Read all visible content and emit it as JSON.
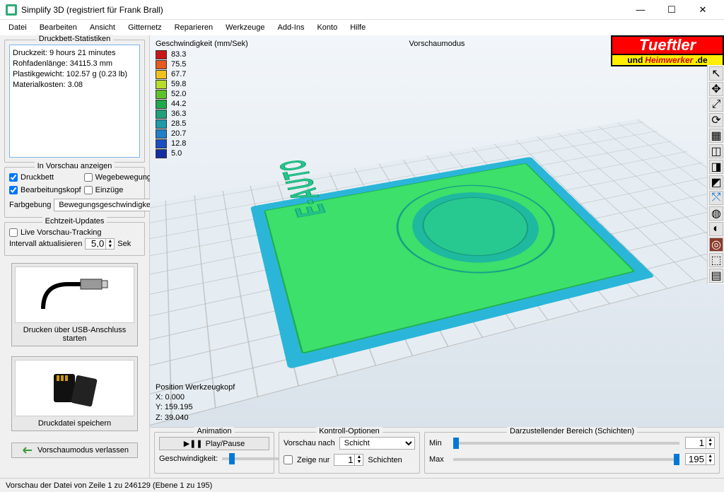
{
  "window": {
    "title": "Simplify 3D (registriert für Frank Brall)",
    "minimize": "—",
    "maximize": "☐",
    "close": "✕"
  },
  "menu": [
    "Datei",
    "Bearbeiten",
    "Ansicht",
    "Gitternetz",
    "Reparieren",
    "Werkzeuge",
    "Add-Ins",
    "Konto",
    "Hilfe"
  ],
  "logo": {
    "line1": "Tueftler",
    "line2_a": "und",
    "line2_b": "Heimwerker",
    "line2_c": ".de",
    "bg": "#ff0000",
    "text": "#ffffff",
    "line2_bg": "#ffee00",
    "line2_text": "#d60000"
  },
  "sidebar": {
    "stats_title": "Druckbett-Statistiken",
    "stats_lines": {
      "l1": "Druckzeit: 9 hours 21 minutes",
      "l2": "Rohfadenlänge: 34115.3 mm",
      "l3": "Plastikgewicht: 102.57 g (0.23 lb)",
      "l4": "Materialkosten: 3.08"
    },
    "preview_title": "In Vorschau anzeigen",
    "cb_druckbett": "Druckbett",
    "cb_wege": "Wegebewegungen",
    "cb_kopf": "Bearbeitungskopf",
    "cb_einzuege": "Einzüge",
    "farbgebung_label": "Farbgebung",
    "farbgebung_value": "Bewegungsgeschwindigkeit",
    "realtime_title": "Echtzeit-Updates",
    "cb_tracking": "Live Vorschau-Tracking",
    "interval_label": "Intervall aktualisieren",
    "interval_value": "5,0",
    "interval_unit": "Sek",
    "usb_btn": "Drucken über USB-Anschluss starten",
    "save_btn": "Druckdatei speichern",
    "exit_btn": "Vorschaumodus verlassen"
  },
  "viewport": {
    "speed_title": "Geschwindigkeit (mm/Sek)",
    "mode": "Vorschaumodus",
    "legend": [
      {
        "v": "83.3",
        "c": "#c8151a"
      },
      {
        "v": "75.5",
        "c": "#e55a1f"
      },
      {
        "v": "67.7",
        "c": "#efc21e"
      },
      {
        "v": "59.8",
        "c": "#b7dc2a"
      },
      {
        "v": "52.0",
        "c": "#5ec22b"
      },
      {
        "v": "44.2",
        "c": "#22a84c"
      },
      {
        "v": "36.3",
        "c": "#1fa07a"
      },
      {
        "v": "28.5",
        "c": "#1f9aa8"
      },
      {
        "v": "20.7",
        "c": "#1f7fc8"
      },
      {
        "v": "12.8",
        "c": "#1b4cc0"
      },
      {
        "v": "5.0",
        "c": "#152da0"
      }
    ],
    "pos_title": "Position Werkzeugkopf",
    "pos_x": "X: 0.000",
    "pos_y": "Y: 159.195",
    "pos_z": "Z: 39.040",
    "etext": "E-AUTO"
  },
  "bottom": {
    "anim_title": "Animation",
    "play": "Play/Pause",
    "speed_label": "Geschwindigkeit:",
    "kontroll_title": "Kontroll-Optionen",
    "vorschau_label": "Vorschau nach",
    "vorschau_value": "Schicht",
    "zeige_label": "Zeige nur",
    "zeige_value": "1",
    "zeige_unit": "Schichten",
    "range_title": "Darzustellender Bereich (Schichten)",
    "min_label": "Min",
    "max_label": "Max",
    "min_value": "1",
    "max_value": "195"
  },
  "status": "Vorschau der Datei von Zeile 1 zu 246129 (Ebene 1 zu 195)"
}
